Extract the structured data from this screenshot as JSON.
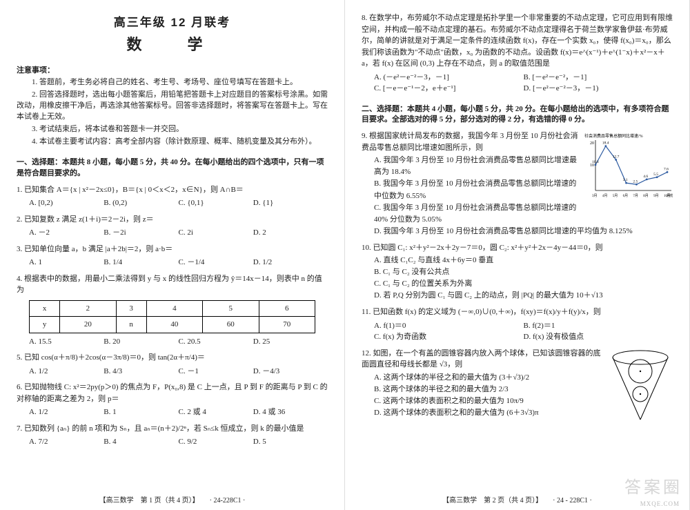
{
  "header": {
    "line1": "高三年级 12 月联考",
    "line2": "数　学"
  },
  "notice": {
    "head": "注意事项：",
    "items": [
      "1. 答题前，考生务必将自己的姓名、考生号、考场号、座位号填写在答题卡上。",
      "2. 回答选择题时，选出每小题答案后，用铅笔把答题卡上对应题目的答案标号涂黑。如需改动，用橡皮擦干净后，再选涂其他答案标号。回答非选择题时，将答案写在答题卡上。写在本试卷上无效。",
      "3. 考试结束后，将本试卷和答题卡一并交回。",
      "4. 本试卷主要考试内容：高考全部内容（除计数原理、概率、随机变量及其分布外）。"
    ]
  },
  "sectionA": {
    "head": "一、选择题：本题共 8 小题，每小题 5 分，共 40 分。在每小题给出的四个选项中，只有一项是符合题目要求的。"
  },
  "q1": {
    "stem": "1. 已知集合 A＝{x | x²－2x≤0}，B＝{x | 0＜x＜2，x∈N}，则 A∩B＝",
    "A": "A. [0,2)",
    "B": "B. (0,2)",
    "C": "C. {0,1}",
    "D": "D. {1}"
  },
  "q2": {
    "stem": "2. 已知复数 z 满足 z(1＋i)＝2－2i，则 z＝",
    "A": "A. －2",
    "B": "B. －2i",
    "C": "C. 2i",
    "D": "D. 2"
  },
  "q3": {
    "stem": "3. 已知单位向量 a，b 满足 |a＋2b|＝2，则 a·b＝",
    "A": "A. 1",
    "B": "B. 1/4",
    "C": "C. －1/4",
    "D": "D. 1/2"
  },
  "q4": {
    "stem": "4. 根据表中的数据，用最小二乘法得到 y 与 x 的线性回归方程为 ŷ＝14x－14，则表中 n 的值为",
    "table": {
      "r1": [
        "x",
        "2",
        "3",
        "4",
        "5",
        "6"
      ],
      "r2": [
        "y",
        "20",
        "n",
        "40",
        "60",
        "70"
      ]
    },
    "A": "A. 15.5",
    "B": "B. 20",
    "C": "C. 20.5",
    "D": "D. 25"
  },
  "q5": {
    "stem": "5. 已知 cos(α＋π/8)＋2cos(α－3π/8)＝0，则 tan(2α＋π/4)＝",
    "A": "A. 1/2",
    "B": "B. 4/3",
    "C": "C. －1",
    "D": "D. －4/3"
  },
  "q6": {
    "stem": "6. 已知抛物线 C: x²＝2py(p＞0) 的焦点为 F，P(x₀,8) 是 C 上一点，且 P 到 F 的距离与 P 到 C 的对称轴的距离之差为 2，则 p＝",
    "A": "A. 1/2",
    "B": "B. 1",
    "C": "C. 2 或 4",
    "D": "D. 4 或 36"
  },
  "q7": {
    "stem": "7. 已知数列 {aₙ} 的前 n 项和为 Sₙ，且 aₙ＝(n＋2)/2ⁿ，若 Sₙ≤k 恒成立，则 k 的最小值是",
    "A": "A. 7/2",
    "B": "B. 4",
    "C": "C. 9/2",
    "D": "D. 5"
  },
  "q8": {
    "stem": "8. 在数学中，布劳威尔不动点定理是拓扑学里一个非常重要的不动点定理，它可应用到有限维空间，并构成一般不动点定理的基石。布劳威尔不动点定理得名于荷兰数学家鲁伊兹·布劳威尔，简单的讲就是对于满足一定条件的连续函数 f(x)，存在一个实数 x₀，使得 f(x₀)＝x₀，那么我们称该函数为\"不动点\"函数，x₀ 为函数的不动点。设函数 f(x)＝e^(x⁻¹)＋e^(1⁻x)＋x²－x＋a，若 f(x) 在区间 (0,3) 上存在不动点，则 a 的取值范围是",
    "A": "A. (－e²－e⁻²－3，－1]",
    "B": "B. [－e²－e⁻²，－1]",
    "C": "C. [－e－e⁻¹－2，e＋e⁻¹]",
    "D": "D. [－e²－e⁻²－3，－1)"
  },
  "sectionB": {
    "head": "二、选择题：本题共 4 小题，每小题 5 分，共 20 分。在每小题给出的选项中，有多项符合题目要求。全部选对的得 5 分，部分选对的得 2 分，有选错的得 0 分。"
  },
  "q9": {
    "stem": "9. 根据国家统计局发布的数据，我国今年 3 月份至 10 月份社会消费品零售总额同比增速如图所示，则",
    "A": "A. 我国今年 3 月份至 10 月份社会消费品零售总额同比增速最高为 18.4%",
    "B": "B. 我国今年 3 月份至 10 月份社会消费品零售总额同比增速的中位数为 6.55%",
    "C": "C. 我国今年 3 月份至 10 月份社会消费品零售总额同比增速的 40% 分位数为 5.05%",
    "D": "D. 我国今年 3 月份至 10 月份社会消费品零售总额同比增速的平均值为 8.125%",
    "chart": {
      "title": "社会消费品零售总额同比增速/%",
      "xlabels": [
        "3月",
        "4月",
        "5月",
        "6月",
        "7月",
        "8月",
        "9月",
        "10月",
        "月份"
      ],
      "values": [
        10.6,
        18.4,
        12.7,
        3.1,
        2.5,
        4.6,
        5.5,
        7.6
      ],
      "ylim": [
        0,
        20
      ],
      "line_color": "#2c5aa0",
      "axis_color": "#000"
    }
  },
  "q10": {
    "stem": "10. 已知圆 C₁: x²＋y²－2x＋2y－7＝0，圆 C₂: x²＋y²＋2x－4y－44＝0，则",
    "A": "A. 直线 C₁C₂ 与直线 4x＋6y＝0 垂直",
    "B": "B. C₁ 与 C₂ 没有公共点",
    "C": "C. C₁ 与 C₂ 的位置关系为外离",
    "D": "D. 若 P,Q 分别为圆 C₁ 与圆 C₂ 上的动点，则 |PQ| 的最大值为 10＋√13"
  },
  "q11": {
    "stem": "11. 已知函数 f(x) 的定义域为 (－∞,0)∪(0,＋∞)，f(xy)＝f(x)/y＋f(y)/x，则",
    "A": "A. f(1)＝0",
    "B": "B. f(2)＝1",
    "C": "C. f(x) 为奇函数",
    "D": "D. f(x) 没有极值点"
  },
  "q12": {
    "stem": "12. 如图，在一个有盖的圆锥容器内放入两个球体，已知该圆锥容器的底面圆直径和母线长都是 √3，则",
    "A": "A. 这两个球体的半径之和的最大值为 (3＋√3)/2",
    "B": "B. 这两个球体的半径之和的最大值为 2/3",
    "C": "C. 这两个球体的表面积之和的最大值为 10π/9",
    "D": "D. 这两个球体的表面积之和的最大值为 (6＋3√3)π"
  },
  "footer": {
    "p1": "【高三数学　第 1 页（共 4 页）】　　· 24-228C1 ·",
    "p2": "【高三数学　第 2 页（共 4 页）】　　· 24 - 228C1 ·"
  },
  "watermark": {
    "main": "答案圈",
    "sub": "MXQE.COM"
  }
}
